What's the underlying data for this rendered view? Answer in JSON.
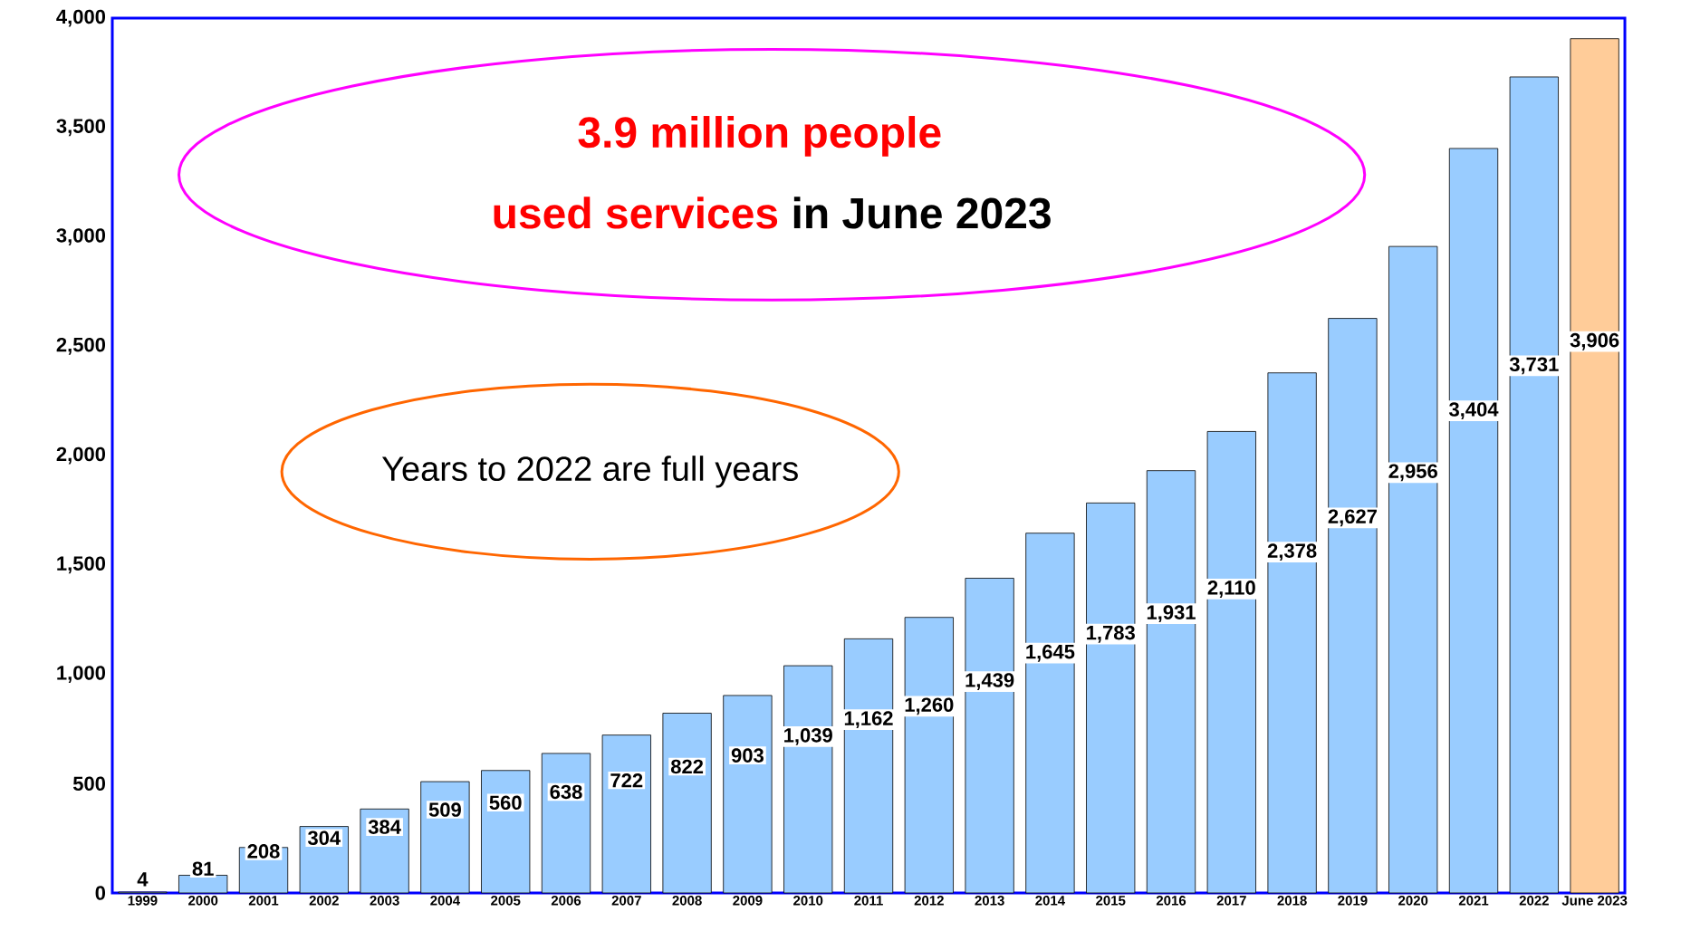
{
  "chart_data": {
    "type": "bar",
    "categories": [
      "1999",
      "2000",
      "2001",
      "2002",
      "2003",
      "2004",
      "2005",
      "2006",
      "2007",
      "2008",
      "2009",
      "2010",
      "2011",
      "2012",
      "2013",
      "2014",
      "2015",
      "2016",
      "2017",
      "2018",
      "2019",
      "2020",
      "2021",
      "2022",
      "June 2023"
    ],
    "values": [
      4,
      81,
      208,
      304,
      384,
      509,
      560,
      638,
      722,
      822,
      903,
      1039,
      1162,
      1260,
      1439,
      1645,
      1783,
      1931,
      2110,
      2378,
      2627,
      2956,
      3404,
      3731,
      3906
    ],
    "value_labels": [
      "4",
      "81",
      "208",
      "304",
      "384",
      "509",
      "560",
      "638",
      "722",
      "822",
      "903",
      "1,039",
      "1,162",
      "1,260",
      "1,439",
      "1,645",
      "1,783",
      "1,931",
      "2,110",
      "2,378",
      "2,627",
      "2,956",
      "3,404",
      "3,731",
      "3,906"
    ],
    "colors": [
      "#99ccff",
      "#99ccff",
      "#99ccff",
      "#99ccff",
      "#99ccff",
      "#99ccff",
      "#99ccff",
      "#99ccff",
      "#99ccff",
      "#99ccff",
      "#99ccff",
      "#99ccff",
      "#99ccff",
      "#99ccff",
      "#99ccff",
      "#99ccff",
      "#99ccff",
      "#99ccff",
      "#99ccff",
      "#99ccff",
      "#99ccff",
      "#99ccff",
      "#99ccff",
      "#99ccff",
      "#ffcc99"
    ],
    "ylim": [
      0,
      4000
    ],
    "yticks": [
      {
        "value": 0,
        "label": "0"
      },
      {
        "value": 500,
        "label": "500"
      },
      {
        "value": 1000,
        "label": "1,000"
      },
      {
        "value": 1500,
        "label": "1,500"
      },
      {
        "value": 2000,
        "label": "2,000"
      },
      {
        "value": 2500,
        "label": "2,500"
      },
      {
        "value": 3000,
        "label": "3,000"
      },
      {
        "value": 3500,
        "label": "3,500"
      },
      {
        "value": 4000,
        "label": "4,000"
      }
    ],
    "annotations": [
      "3.9 million people",
      "used services",
      "in June 2023",
      "Years to 2022 are full years"
    ]
  }
}
